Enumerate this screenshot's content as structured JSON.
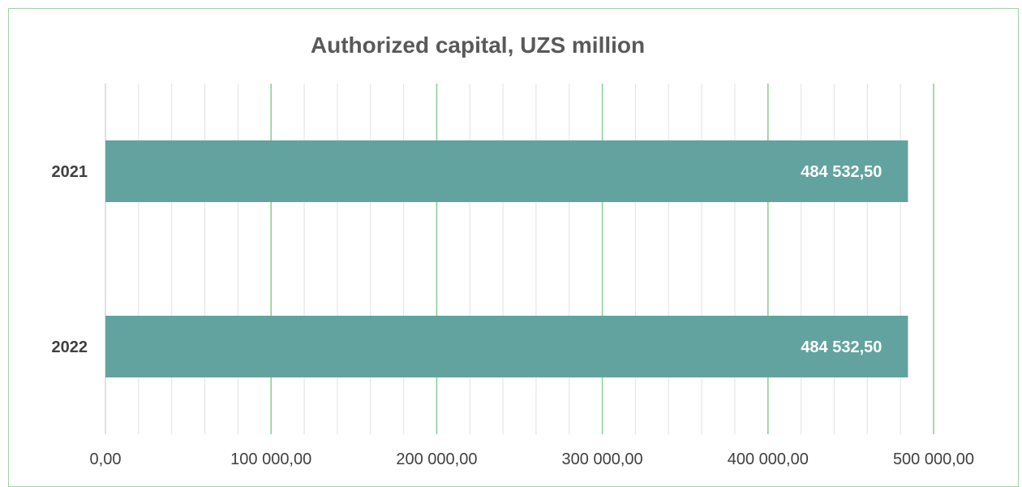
{
  "chart_data": {
    "type": "bar",
    "orientation": "horizontal",
    "title": "Authorized capital, UZS million",
    "categories": [
      "2021",
      "2022"
    ],
    "values": [
      484532.5,
      484532.5
    ],
    "value_labels": [
      "484 532,50",
      "484 532,50"
    ],
    "xlim": [
      0,
      500000
    ],
    "x_ticks": [
      0,
      100000,
      200000,
      300000,
      400000,
      500000
    ],
    "x_tick_labels": [
      "0,00",
      "100 000,00",
      "200 000,00",
      "300 000,00",
      "400 000,00",
      "500 000,00"
    ],
    "xlabel": "",
    "ylabel": "",
    "grid": true,
    "legend": "none",
    "colors": {
      "bar": "#62a39f",
      "major_grid": "#8fce9b",
      "minor_grid": "#e6e6e6",
      "frame": "#9fd3a8",
      "title": "#595959",
      "labels": "#404040"
    }
  }
}
